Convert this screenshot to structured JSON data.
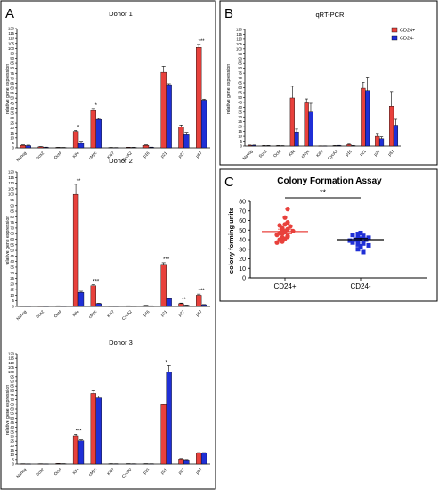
{
  "panels": {
    "A": {
      "letter": "A"
    },
    "B": {
      "letter": "B"
    },
    "C": {
      "letter": "C"
    }
  },
  "colors": {
    "cd24_pos": "#e8413c",
    "cd24_neg": "#1f2fd6",
    "bar_stroke": "#000000"
  },
  "chart_data": [
    {
      "id": "donor1",
      "type": "bar",
      "title": "Donor 1",
      "ylabel": "relative gene expression",
      "ylim": [
        0,
        120
      ],
      "yticks": [
        0,
        5,
        10,
        15,
        20,
        25,
        30,
        35,
        40,
        45,
        50,
        55,
        60,
        65,
        70,
        75,
        80,
        85,
        90,
        95,
        100,
        105,
        110,
        115,
        120
      ],
      "categories": [
        "Nanog",
        "Sox2",
        "Oct4",
        "Klf4",
        "cMyc",
        "Ki67",
        "CycA2",
        "p16",
        "p21",
        "p27",
        "p57"
      ],
      "series": [
        {
          "name": "CD24+",
          "values": [
            2.5,
            1,
            0.4,
            16.5,
            37.5,
            0.3,
            0.5,
            2.5,
            76,
            21,
            101
          ],
          "errors": [
            0.5,
            0.3,
            0.1,
            1,
            2,
            0.1,
            0.1,
            0.5,
            6,
            2,
            3
          ]
        },
        {
          "name": "CD24-",
          "values": [
            2.2,
            0.5,
            0.3,
            4.5,
            28.5,
            0.2,
            0.4,
            0.5,
            63.5,
            14,
            48
          ],
          "errors": [
            0.5,
            0.2,
            0.1,
            2,
            1,
            0.1,
            0.1,
            0.2,
            1,
            1.5,
            1
          ]
        }
      ],
      "annotations": [
        {
          "category": "Klf4",
          "text": "*"
        },
        {
          "category": "cMyc",
          "text": "*"
        },
        {
          "category": "p57",
          "text": "***"
        }
      ]
    },
    {
      "id": "donor2",
      "type": "bar",
      "title": "Donor 2",
      "ylabel": "relative gene expression",
      "ylim": [
        0,
        120
      ],
      "yticks": [
        0,
        5,
        10,
        15,
        20,
        25,
        30,
        35,
        40,
        45,
        50,
        55,
        60,
        65,
        70,
        75,
        80,
        85,
        90,
        95,
        100,
        105,
        110,
        115,
        120
      ],
      "categories": [
        "Nanog",
        "Sox2",
        "Oct4",
        "Klf4",
        "cMyc",
        "Ki67",
        "CycA2",
        "p16",
        "p21",
        "p27",
        "p57"
      ],
      "series": [
        {
          "name": "CD24+",
          "values": [
            0.4,
            0.2,
            0.5,
            100,
            18.5,
            0.3,
            0.5,
            0.8,
            37.5,
            2.5,
            10
          ],
          "errors": [
            0.1,
            0.1,
            0.1,
            9,
            1,
            0.1,
            0.1,
            0.2,
            1.5,
            0.5,
            1
          ]
        },
        {
          "name": "CD24-",
          "values": [
            0.2,
            0.1,
            0.2,
            12.5,
            2.5,
            0.2,
            0.3,
            0.5,
            7,
            1,
            1.5
          ],
          "errors": [
            0.1,
            0.1,
            0.1,
            1,
            0.3,
            0.1,
            0.1,
            0.1,
            0.5,
            0.2,
            0.2
          ]
        }
      ],
      "annotations": [
        {
          "category": "Klf4",
          "text": "**"
        },
        {
          "category": "cMyc",
          "text": "***"
        },
        {
          "category": "p21",
          "text": "***"
        },
        {
          "category": "p27",
          "text": "**"
        },
        {
          "category": "p57",
          "text": "***"
        }
      ]
    },
    {
      "id": "donor3",
      "type": "bar",
      "title": "Donor 3",
      "ylabel": "relative gene expression",
      "ylim": [
        0,
        120
      ],
      "yticks": [
        0,
        5,
        10,
        15,
        20,
        25,
        30,
        35,
        40,
        45,
        50,
        55,
        60,
        65,
        70,
        75,
        80,
        85,
        90,
        95,
        100,
        105,
        110,
        115,
        120
      ],
      "categories": [
        "Nanog",
        "Sox2",
        "Oct4",
        "Klf4",
        "cMyc",
        "Ki67",
        "CycA2",
        "p16",
        "p21",
        "p27",
        "p57"
      ],
      "series": [
        {
          "name": "CD24+",
          "values": [
            0.2,
            0.2,
            0.5,
            31,
            77,
            0.3,
            0.3,
            0.3,
            64.5,
            5.5,
            12
          ],
          "errors": [
            0.1,
            0.1,
            0.1,
            1.5,
            3,
            0.1,
            0.1,
            0.1,
            0.5,
            0.5,
            0.5
          ]
        },
        {
          "name": "CD24-",
          "values": [
            0.1,
            0.1,
            0.3,
            25.5,
            72,
            0.2,
            0.2,
            0.2,
            100,
            4.5,
            12
          ],
          "errors": [
            0.1,
            0.1,
            0.1,
            1,
            2,
            0.1,
            0.1,
            0.1,
            7,
            0.5,
            0.5
          ]
        }
      ],
      "annotations": [
        {
          "category": "Klf4",
          "text": "***"
        },
        {
          "category": "p21",
          "text": "*"
        }
      ]
    },
    {
      "id": "qrtpcr",
      "type": "bar",
      "title": "qRT-PCR",
      "ylabel": "relative gene expression",
      "ylim": [
        0,
        120
      ],
      "yticks": [
        0,
        5,
        10,
        15,
        20,
        25,
        30,
        35,
        40,
        45,
        50,
        55,
        60,
        65,
        70,
        75,
        80,
        85,
        90,
        95,
        100,
        105,
        110,
        115,
        120
      ],
      "categories": [
        "Nanog",
        "Sox2",
        "Oct4",
        "Klf4",
        "cMyc",
        "Ki67",
        "CycA2",
        "p16",
        "p21",
        "p27",
        "p57"
      ],
      "legend_position": "top-right",
      "series": [
        {
          "name": "CD24+",
          "values": [
            0.8,
            0.4,
            0.4,
            49.5,
            44.5,
            0.1,
            0.4,
            1.5,
            59.5,
            10,
            41
          ],
          "errors": [
            0.2,
            0.1,
            0.1,
            12,
            4,
            0.1,
            0.1,
            0.5,
            6,
            3,
            15
          ]
        },
        {
          "name": "CD24-",
          "values": [
            0.8,
            0.4,
            0.3,
            14.5,
            35,
            0.1,
            0.5,
            0.4,
            57,
            7.5,
            21.5
          ],
          "errors": [
            0.2,
            0.1,
            0.1,
            3,
            9,
            0.1,
            0.2,
            0.1,
            14,
            2,
            6
          ]
        }
      ],
      "annotations": []
    },
    {
      "id": "colony",
      "type": "scatter",
      "title": "Colony Formation Assay",
      "ylabel": "colony forming units",
      "ylim": [
        0,
        80
      ],
      "yticks": [
        0,
        10,
        20,
        30,
        40,
        50,
        60,
        70,
        80
      ],
      "categories": [
        "CD24+",
        "CD24-"
      ],
      "series": [
        {
          "name": "CD24+",
          "marker": "circle",
          "mean": 48.5,
          "sem": 2.5,
          "values": [
            72,
            63,
            58,
            56,
            55,
            54,
            52,
            51,
            50,
            49,
            48,
            47,
            46,
            45,
            44,
            43,
            42,
            41,
            40,
            38,
            37
          ]
        },
        {
          "name": "CD24-",
          "marker": "square",
          "mean": 40,
          "sem": 1.5,
          "values": [
            47,
            46,
            45,
            44,
            43,
            42,
            42,
            41,
            40,
            40,
            39,
            38,
            37,
            36,
            35,
            34,
            33,
            30,
            27
          ]
        }
      ],
      "significance": "**"
    }
  ]
}
